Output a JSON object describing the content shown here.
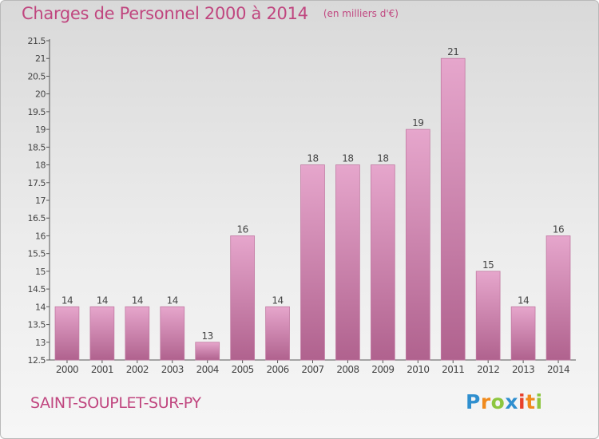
{
  "header": {
    "title": "Charges de Personnel 2000 à 2014",
    "subtitle": "(en milliers d'€)"
  },
  "footer": {
    "town": "SAINT-SOUPLET-SUR-PY",
    "logo": "Proxiti"
  },
  "colors": {
    "accent": "#c0467f",
    "bar_light": "#e6a6cc",
    "bar_dark": "#b0628e",
    "logo_letters": [
      "#2f8fcf",
      "#f08a1c",
      "#8dc63f",
      "#2f8fcf",
      "#e8412c",
      "#f08a1c",
      "#8dc63f"
    ]
  },
  "chart_data": {
    "type": "bar",
    "title": "Charges de Personnel 2000 à 2014",
    "subtitle": "(en milliers d'€)",
    "xlabel": "",
    "ylabel": "",
    "categories": [
      "2000",
      "2001",
      "2002",
      "2003",
      "2004",
      "2005",
      "2006",
      "2007",
      "2008",
      "2009",
      "2010",
      "2011",
      "2012",
      "2013",
      "2014"
    ],
    "values": [
      14,
      14,
      14,
      14,
      13,
      16,
      14,
      18,
      18,
      18,
      19,
      21,
      15,
      14,
      16
    ],
    "data_labels": [
      "14",
      "14",
      "14",
      "14",
      "13",
      "16",
      "14",
      "18",
      "18",
      "18",
      "19",
      "21",
      "15",
      "14",
      "16"
    ],
    "ylim": [
      12.5,
      21.5
    ],
    "yticks": [
      12.5,
      13,
      13.5,
      14,
      14.5,
      15,
      15.5,
      16,
      16.5,
      17,
      17.5,
      18,
      18.5,
      19,
      19.5,
      20,
      20.5,
      21,
      21.5
    ],
    "ytick_labels": [
      "12.5",
      "13",
      "13.5",
      "14",
      "14.5",
      "15",
      "15.5",
      "16",
      "16.5",
      "17",
      "17.5",
      "18",
      "18.5",
      "19",
      "19.5",
      "20",
      "20.5",
      "21",
      "21.5"
    ],
    "grid": false,
    "legend": "none"
  }
}
